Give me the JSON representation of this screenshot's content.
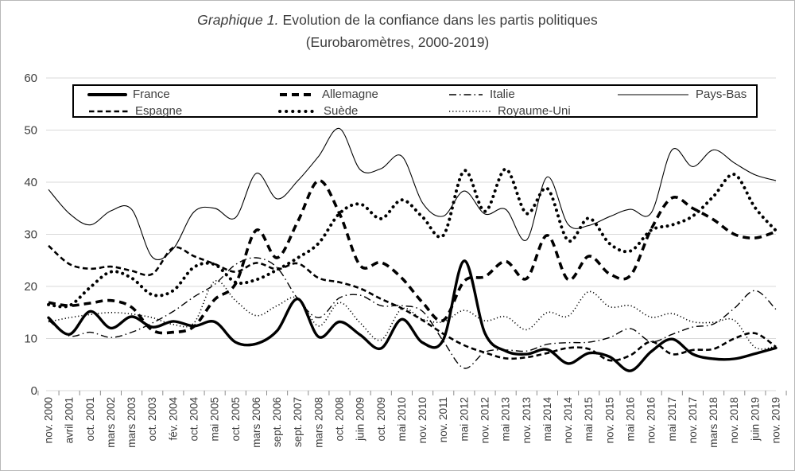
{
  "title": {
    "prefix": "Graphique 1.",
    "main": " Evolution de la confiance dans les partis politiques",
    "subtitle": "(Eurobaromètres, 2000-2019)"
  },
  "chart_data": {
    "type": "line",
    "title": "Graphique 1. Evolution de la confiance dans les partis politiques (Eurobaromètres, 2000-2019)",
    "xlabel": "",
    "ylabel": "",
    "ylim": [
      0,
      60
    ],
    "y_ticks": [
      0,
      10,
      20,
      30,
      40,
      50,
      60
    ],
    "grid": "horizontal",
    "legend_position": "top-inside-box",
    "line_color": "#000000",
    "x_labels": [
      "nov. 2000",
      "avril 2001",
      "oct. 2001",
      "mars 2002",
      "mars 2003",
      "oct. 2003",
      "fév. 2004",
      "oct. 2004",
      "mai 2005",
      "oct. 2005",
      "mars 2006",
      "sept. 2006",
      "sept. 2007",
      "mars 2008",
      "oct. 2008",
      "juin 2009",
      "oct. 2009",
      "mai 2010",
      "nov. 2010",
      "nov. 2011",
      "mai 2012",
      "nov. 2012",
      "mai 2013",
      "nov. 2013",
      "mai 2014",
      "nov. 2014",
      "mai 2015",
      "nov. 2015",
      "mai 2016",
      "nov. 2016",
      "mai 2017",
      "nov. 2017",
      "mars 2018",
      "nov. 2018",
      "juin 2019",
      "nov. 2019"
    ],
    "series": [
      {
        "name": "France",
        "style": "solid-thick",
        "values": [
          14.0,
          10.8,
          15.2,
          12.0,
          14.2,
          12.2,
          13.3,
          12.4,
          13.2,
          9.3,
          9.0,
          11.5,
          17.6,
          10.3,
          13.2,
          10.7,
          8.1,
          13.7,
          9.2,
          9.8,
          24.9,
          11.0,
          7.6,
          7.0,
          7.9,
          5.2,
          7.2,
          6.5,
          3.8,
          7.5,
          9.9,
          7.0,
          6.1,
          6.1,
          7.1,
          8.2
        ]
      },
      {
        "name": "Allemagne",
        "style": "dash-thick",
        "values": [
          16.9,
          16.3,
          16.8,
          17.3,
          16.0,
          11.6,
          11.2,
          12.3,
          17.5,
          20.5,
          30.8,
          25.5,
          32.5,
          40.3,
          34.0,
          24.0,
          24.6,
          21.6,
          16.9,
          13.5,
          21.0,
          21.9,
          24.8,
          21.5,
          29.8,
          21.3,
          25.8,
          22.4,
          22.1,
          31.0,
          37.0,
          35.0,
          32.8,
          30.0,
          29.3,
          30.5
        ]
      },
      {
        "name": "Italie",
        "style": "dashdot-thin",
        "values": [
          13.5,
          10.5,
          11.2,
          10.2,
          11.2,
          13.0,
          15.2,
          18.0,
          20.4,
          24.2,
          25.5,
          23.6,
          17.6,
          14.0,
          17.8,
          18.3,
          16.3,
          16.3,
          15.2,
          9.5,
          4.3,
          7.4,
          7.8,
          7.6,
          8.9,
          9.2,
          9.3,
          10.2,
          11.9,
          9.4,
          10.8,
          12.2,
          12.8,
          15.8,
          19.2,
          15.6
        ]
      },
      {
        "name": "Pays-Bas",
        "style": "solid-thin",
        "values": [
          38.6,
          34.0,
          31.8,
          34.5,
          34.8,
          25.6,
          27.2,
          34.3,
          35.0,
          33.2,
          41.7,
          36.8,
          40.3,
          45.0,
          50.3,
          42.4,
          42.6,
          45.0,
          36.0,
          33.5,
          38.3,
          33.9,
          34.8,
          28.9,
          41.0,
          31.9,
          31.7,
          33.4,
          34.8,
          34.1,
          46.2,
          43.0,
          46.2,
          43.7,
          41.4,
          40.3
        ]
      },
      {
        "name": "Espagne",
        "style": "dash-medium",
        "values": [
          27.8,
          24.3,
          23.4,
          23.8,
          23.0,
          22.4,
          27.4,
          25.8,
          24.3,
          22.8,
          24.5,
          23.3,
          24.4,
          21.6,
          20.8,
          19.6,
          17.6,
          15.8,
          13.5,
          10.9,
          8.7,
          7.3,
          6.2,
          6.4,
          7.2,
          8.2,
          8.0,
          5.8,
          6.8,
          9.4,
          7.0,
          7.8,
          8.0,
          10.0,
          11.0,
          8.4
        ]
      },
      {
        "name": "Suède",
        "style": "dot-round-thick",
        "values": [
          16.5,
          16.3,
          19.8,
          22.8,
          21.6,
          18.4,
          19.2,
          23.7,
          24.2,
          20.8,
          21.3,
          23.2,
          25.5,
          28.3,
          34.0,
          35.8,
          33.0,
          36.6,
          33.3,
          29.8,
          42.2,
          34.4,
          42.5,
          34.0,
          38.8,
          28.8,
          33.1,
          28.2,
          26.8,
          30.8,
          31.8,
          33.5,
          37.3,
          41.5,
          35.1,
          30.7
        ]
      },
      {
        "name": "Royaume-Uni",
        "style": "dot-fine",
        "values": [
          13.2,
          14.0,
          14.6,
          15.0,
          14.7,
          14.0,
          12.7,
          13.0,
          21.0,
          17.3,
          14.4,
          16.3,
          17.8,
          12.4,
          16.9,
          13.0,
          9.7,
          15.7,
          13.7,
          13.2,
          15.4,
          13.4,
          14.2,
          11.7,
          15.0,
          14.3,
          19.0,
          16.1,
          16.3,
          14.1,
          14.8,
          13.2,
          13.1,
          13.5,
          8.3,
          8.5
        ]
      }
    ],
    "legend_order": [
      "France",
      "Allemagne",
      "Italie",
      "Pays-Bas",
      "Espagne",
      "Suède",
      "Royaume-Uni"
    ],
    "axis_text_color": "#3d3d3d",
    "gridline_color": "#d9d9d9",
    "tick_color": "#8c8c8c"
  }
}
